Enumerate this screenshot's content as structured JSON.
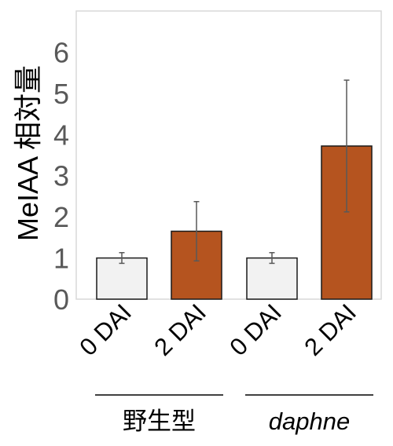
{
  "chart_data": {
    "type": "bar",
    "ylabel": "MeIAA 相対量",
    "xlabel": "",
    "ylim": [
      0,
      7
    ],
    "yticks": [
      0,
      1,
      2,
      3,
      4,
      5,
      6
    ],
    "categories": [
      "0 DAI",
      "2 DAI",
      "0 DAI",
      "2 DAI"
    ],
    "values": [
      1.0,
      1.65,
      1.0,
      3.72
    ],
    "errors": [
      0.13,
      0.72,
      0.13,
      1.6
    ],
    "bar_colors": [
      "#f2f2f2",
      "#b5541f",
      "#f2f2f2",
      "#b5541f"
    ],
    "groups": [
      {
        "label": "野生型",
        "italic": false,
        "categories": [
          0,
          1
        ]
      },
      {
        "label": "daphne",
        "italic": true,
        "categories": [
          2,
          3
        ]
      }
    ],
    "grid": false,
    "legend": "none"
  },
  "colors": {
    "bar_light": "#f2f2f2",
    "bar_dark": "#b5541f",
    "axis_frame": "#d9d9d9",
    "tick_text": "#595959"
  }
}
